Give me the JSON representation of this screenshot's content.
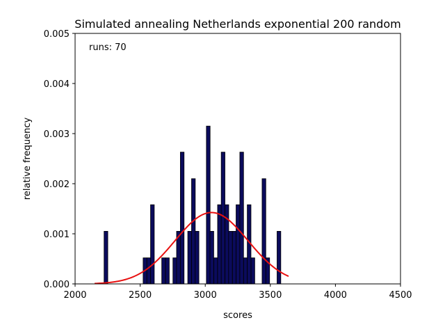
{
  "chart_data": {
    "type": "bar",
    "title": "Simulated annealing Netherlands exponential 200 random",
    "xlabel": "scores",
    "ylabel": "relative frequency",
    "annotation": "runs: 70",
    "xlim": [
      2000,
      4500
    ],
    "ylim": [
      0,
      0.005
    ],
    "xticks": [
      2000,
      2500,
      3000,
      3500,
      4000,
      4500
    ],
    "yticks": [
      "0.000",
      "0.001",
      "0.002",
      "0.003",
      "0.004",
      "0.005"
    ],
    "bin_width": 28.6,
    "bar_color": "#0b0b5c",
    "curve_color": "#e81010",
    "bars": [
      {
        "x": 2237,
        "y": 0.00105
      },
      {
        "x": 2537,
        "y": 0.00052
      },
      {
        "x": 2566,
        "y": 0.00052
      },
      {
        "x": 2594,
        "y": 0.00158
      },
      {
        "x": 2680,
        "y": 0.00052
      },
      {
        "x": 2709,
        "y": 0.00052
      },
      {
        "x": 2766,
        "y": 0.00052
      },
      {
        "x": 2794,
        "y": 0.00105
      },
      {
        "x": 2823,
        "y": 0.00263
      },
      {
        "x": 2880,
        "y": 0.00105
      },
      {
        "x": 2909,
        "y": 0.0021
      },
      {
        "x": 2937,
        "y": 0.00105
      },
      {
        "x": 3023,
        "y": 0.00315
      },
      {
        "x": 3051,
        "y": 0.00105
      },
      {
        "x": 3080,
        "y": 0.00052
      },
      {
        "x": 3109,
        "y": 0.00158
      },
      {
        "x": 3137,
        "y": 0.00263
      },
      {
        "x": 3166,
        "y": 0.00158
      },
      {
        "x": 3194,
        "y": 0.00105
      },
      {
        "x": 3223,
        "y": 0.00105
      },
      {
        "x": 3251,
        "y": 0.00158
      },
      {
        "x": 3280,
        "y": 0.00263
      },
      {
        "x": 3309,
        "y": 0.00052
      },
      {
        "x": 3337,
        "y": 0.00158
      },
      {
        "x": 3366,
        "y": 0.00052
      },
      {
        "x": 3451,
        "y": 0.0021
      },
      {
        "x": 3480,
        "y": 0.00052
      },
      {
        "x": 3566,
        "y": 0.00105
      }
    ],
    "normal_fit": {
      "mean": 3048,
      "std": 280,
      "x_range": [
        2150,
        3640
      ]
    }
  }
}
